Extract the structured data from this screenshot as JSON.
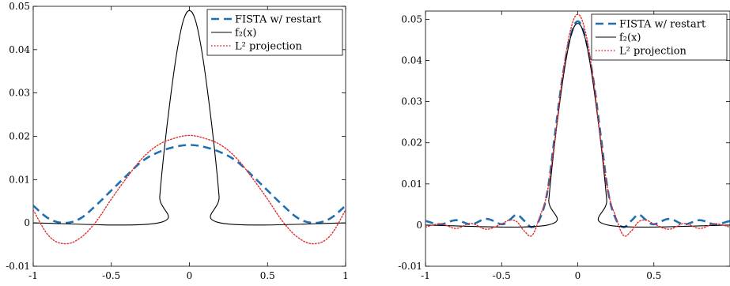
{
  "chart_data": [
    {
      "type": "line",
      "xlim": [
        -1,
        1
      ],
      "ylim": [
        -0.01,
        0.05
      ],
      "xticks": [
        "-1",
        "-0.5",
        "0",
        "0.5",
        "1"
      ],
      "yticks": [
        "-0.01",
        "0",
        "0.01",
        "0.02",
        "0.03",
        "0.04",
        "0.05"
      ],
      "grid": false,
      "legend_position": "top-right",
      "series": [
        {
          "name": "FISTA w/ restart",
          "style": "dashed",
          "color": "#1f6fb5",
          "x": [
            -1,
            -0.9,
            -0.8,
            -0.7,
            -0.6,
            -0.5,
            -0.4,
            -0.3,
            -0.2,
            -0.1,
            0,
            0.1,
            0.2,
            0.3,
            0.4,
            0.5,
            0.6,
            0.7,
            0.8,
            0.9,
            1
          ],
          "y": [
            0.004,
            0.001,
            0.0,
            0.001,
            0.004,
            0.0075,
            0.011,
            0.0143,
            0.0163,
            0.0175,
            0.018,
            0.0175,
            0.0163,
            0.0143,
            0.011,
            0.0075,
            0.004,
            0.001,
            0.0,
            0.001,
            0.004
          ]
        },
        {
          "name": "f₂(x)",
          "style": "solid",
          "color": "#000000",
          "x": [
            -1,
            -0.2,
            -0.19,
            -0.16,
            -0.12,
            -0.08,
            -0.04,
            0,
            0.04,
            0.08,
            0.12,
            0.16,
            0.19,
            0.2,
            1
          ],
          "y": [
            0,
            0,
            0.0061,
            0.0172,
            0.0293,
            0.0395,
            0.0466,
            0.049,
            0.0466,
            0.0395,
            0.0293,
            0.0172,
            0.0061,
            0,
            0
          ]
        },
        {
          "name": "L² projection",
          "style": "dotted",
          "color": "#e03030",
          "x": [
            -1,
            -0.9,
            -0.8,
            -0.7,
            -0.6,
            -0.5,
            -0.4,
            -0.3,
            -0.2,
            -0.1,
            0,
            0.1,
            0.2,
            0.3,
            0.4,
            0.5,
            0.6,
            0.7,
            0.8,
            0.9,
            1
          ],
          "y": [
            0.003,
            -0.003,
            -0.0048,
            -0.0035,
            0.0002,
            0.0055,
            0.0105,
            0.015,
            0.018,
            0.0195,
            0.0202,
            0.0195,
            0.018,
            0.015,
            0.0105,
            0.0055,
            0.0002,
            -0.0035,
            -0.0048,
            -0.003,
            0.003
          ]
        }
      ]
    },
    {
      "type": "line",
      "xlim": [
        -1,
        1
      ],
      "ylim": [
        -0.01,
        0.052
      ],
      "xticks": [
        "-1",
        "-0.5",
        "0",
        "0.5"
      ],
      "yticks": [
        "-0.01",
        "0",
        "0.01",
        "0.02",
        "0.03",
        "0.04",
        "0.05"
      ],
      "grid": false,
      "legend_position": "top-right",
      "series": [
        {
          "name": "FISTA w/ restart",
          "style": "dashed",
          "color": "#1f6fb5",
          "x": [
            -1,
            -0.9,
            -0.8,
            -0.7,
            -0.6,
            -0.5,
            -0.45,
            -0.4,
            -0.35,
            -0.3,
            -0.25,
            -0.2,
            -0.15,
            -0.1,
            -0.05,
            0,
            0.05,
            0.1,
            0.15,
            0.2,
            0.25,
            0.3,
            0.35,
            0.4,
            0.45,
            0.5,
            0.6,
            0.7,
            0.8,
            0.9,
            1
          ],
          "y": [
            0.001,
            0.0002,
            0.0012,
            0.0002,
            0.0015,
            0.0002,
            0.0012,
            0.0025,
            0.001,
            -0.0005,
            0.0015,
            0.008,
            0.022,
            0.036,
            0.0455,
            0.0495,
            0.0455,
            0.036,
            0.022,
            0.008,
            0.0015,
            -0.0005,
            0.001,
            0.0025,
            0.0012,
            0.0002,
            0.0015,
            0.0002,
            0.0012,
            0.0002,
            0.001
          ]
        },
        {
          "name": "f₂(x)",
          "style": "solid",
          "color": "#000000",
          "x": [
            -1,
            -0.2,
            -0.19,
            -0.16,
            -0.12,
            -0.08,
            -0.04,
            0,
            0.04,
            0.08,
            0.12,
            0.16,
            0.19,
            0.2,
            1
          ],
          "y": [
            0,
            0,
            0.0061,
            0.0172,
            0.0293,
            0.0395,
            0.0466,
            0.049,
            0.0466,
            0.0395,
            0.0293,
            0.0172,
            0.0061,
            0,
            0
          ]
        },
        {
          "name": "L² projection",
          "style": "dotted",
          "color": "#e03030",
          "x": [
            -1,
            -0.9,
            -0.8,
            -0.7,
            -0.6,
            -0.5,
            -0.45,
            -0.4,
            -0.35,
            -0.3,
            -0.25,
            -0.2,
            -0.15,
            -0.1,
            -0.05,
            0,
            0.05,
            0.1,
            0.15,
            0.2,
            0.25,
            0.3,
            0.35,
            0.4,
            0.45,
            0.5,
            0.6,
            0.7,
            0.8,
            0.9,
            1
          ],
          "y": [
            -0.0005,
            0.0003,
            -0.0008,
            0.0004,
            -0.001,
            0.0003,
            0.0012,
            0.0008,
            -0.0015,
            -0.0025,
            0.002,
            0.008,
            0.021,
            0.036,
            0.047,
            0.0512,
            0.047,
            0.036,
            0.021,
            0.008,
            0.002,
            -0.0025,
            -0.0015,
            0.0008,
            0.0012,
            0.0003,
            -0.001,
            0.0004,
            -0.0008,
            0.0003,
            -0.0005
          ]
        }
      ]
    }
  ]
}
